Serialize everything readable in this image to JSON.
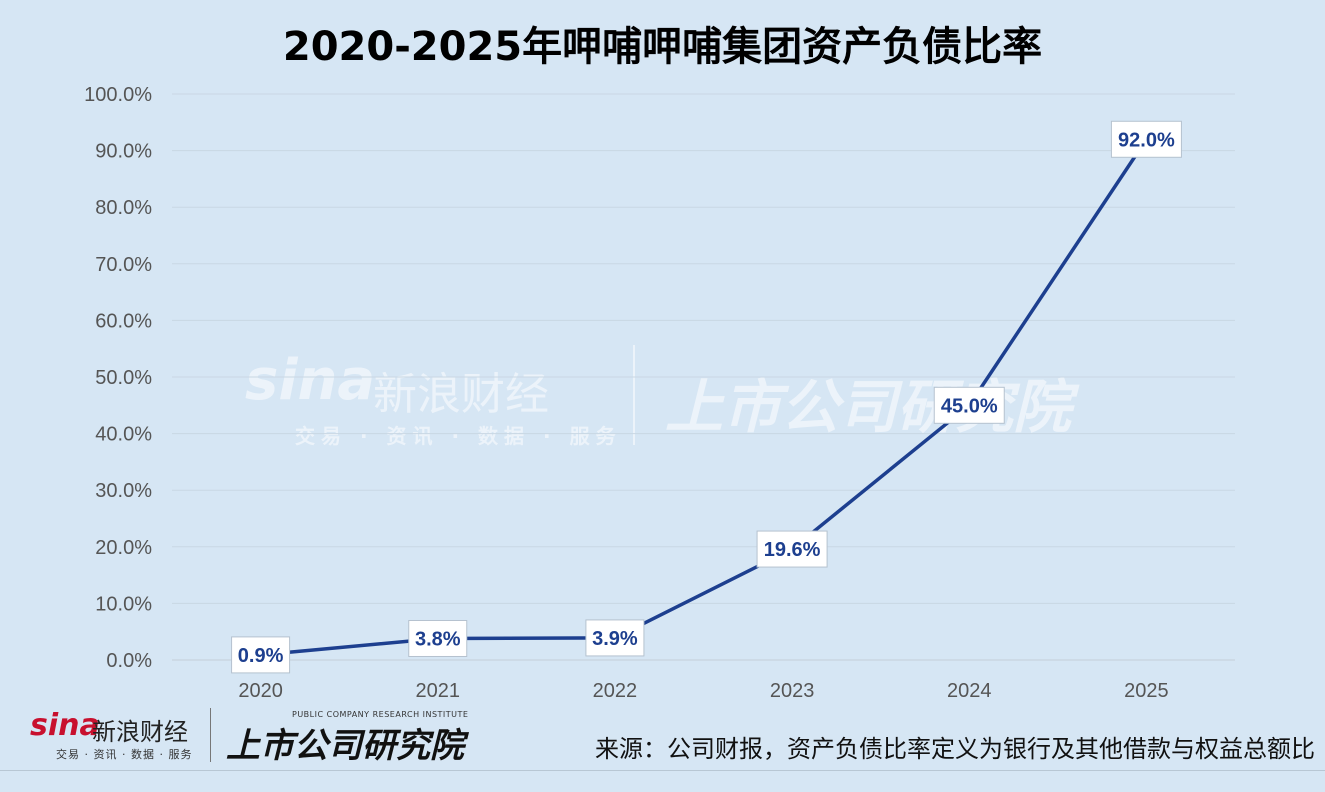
{
  "title": "2020-2025年呷哺呷哺集团资产负债比率",
  "chart_data": {
    "type": "line",
    "title": "2020-2025年呷哺呷哺集团资产负债比率",
    "categories": [
      "2020",
      "2021",
      "2022",
      "2023",
      "2024",
      "2025"
    ],
    "series": [
      {
        "values": [
          0.9,
          3.8,
          3.9,
          19.6,
          45.0,
          92.0
        ]
      }
    ],
    "data_labels": [
      "0.9%",
      "3.8%",
      "3.9%",
      "19.6%",
      "45.0%",
      "92.0%"
    ],
    "yticks": [
      "0.0%",
      "10.0%",
      "20.0%",
      "30.0%",
      "40.0%",
      "50.0%",
      "60.0%",
      "70.0%",
      "80.0%",
      "90.0%",
      "100.0%"
    ],
    "ylim": [
      0,
      100
    ],
    "xlabel": "",
    "ylabel": "",
    "grid": true,
    "line_color": "#1d3f8f",
    "label_color": "#1d3f8f"
  },
  "watermark": {
    "sina_logo": "sina",
    "sina_name": "新浪财经",
    "sina_tag": "交易 · 资讯 · 数据 · 服务",
    "institute": "上市公司研究院"
  },
  "footer": {
    "sina_logo": "sina",
    "sina_name": "新浪财经",
    "sina_tag": "交易 · 资讯 · 数据 · 服务",
    "institute": "上市公司研究院",
    "institute_en": "PUBLIC COMPANY RESEARCH INSTITUTE",
    "source": "来源：公司财报，资产负债比率定义为银行及其他借款与权益总额比"
  }
}
